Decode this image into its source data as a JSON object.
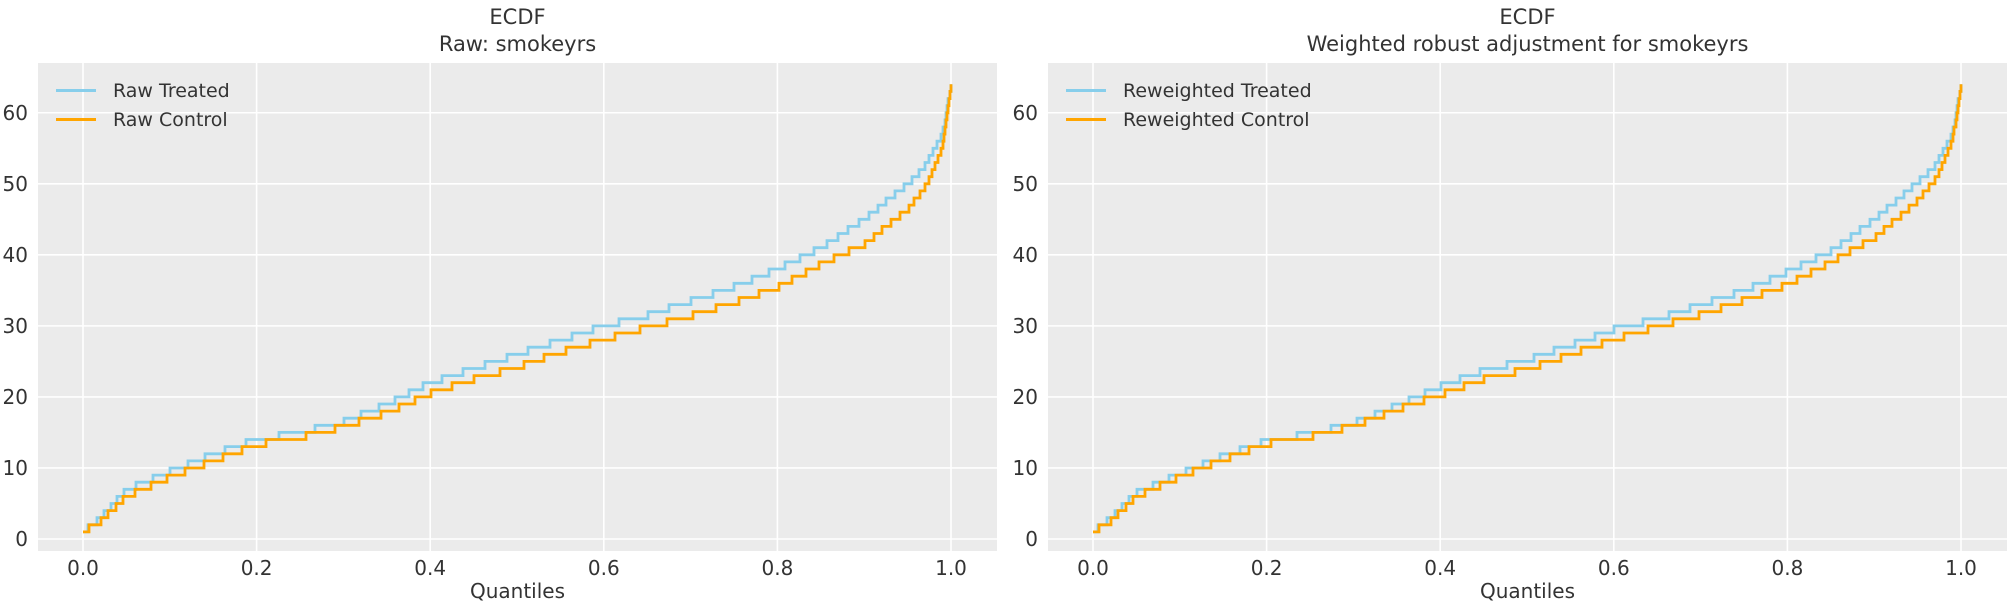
{
  "style": {
    "figure_bg": "#ffffff",
    "axes_bg": "#ebebeb",
    "grid_color": "#ffffff",
    "text_color": "#333333",
    "treated_color": "#87CEEB",
    "control_color": "#FFA500"
  },
  "chart_data": [
    {
      "type": "line",
      "variant": "ecdf-quantile-steps",
      "title": "ECDF",
      "subtitle": "Raw: smokeyrs",
      "xlabel": "Quantiles",
      "x_tick_labels": [
        "0.0",
        "0.2",
        "0.4",
        "0.6",
        "0.8",
        "1.0"
      ],
      "x_tick_values": [
        0,
        0.2,
        0.4,
        0.6,
        0.8,
        1.0
      ],
      "y_tick_labels": [
        "0",
        "10",
        "20",
        "30",
        "40",
        "50",
        "60"
      ],
      "y_tick_values": [
        0,
        10,
        20,
        30,
        40,
        50,
        60
      ],
      "xlim": [
        -0.05,
        1.05
      ],
      "ylim": [
        -1.7,
        67
      ],
      "grid": true,
      "legend_position": "upper left",
      "legend": [
        {
          "label": "Raw Treated",
          "color": "#87CEEB"
        },
        {
          "label": "Raw Control",
          "color": "#FFA500"
        }
      ],
      "series": [
        {
          "name": "Raw Treated",
          "color": "#87CEEB",
          "quantiles": [
            0,
            0.02,
            0.05,
            0.1,
            0.15,
            0.2,
            0.25,
            0.3,
            0.35,
            0.4,
            0.45,
            0.5,
            0.55,
            0.6,
            0.65,
            0.7,
            0.75,
            0.8,
            0.85,
            0.9,
            0.95,
            0.97,
            0.99,
            1.0
          ],
          "values": [
            1,
            3,
            7,
            9.5,
            12,
            14,
            15,
            16.5,
            19,
            22,
            24,
            26,
            28,
            30,
            31.5,
            33.5,
            35.5,
            38,
            41,
            45,
            50,
            52.5,
            57,
            64
          ]
        },
        {
          "name": "Raw Control",
          "color": "#FFA500",
          "quantiles": [
            0,
            0.02,
            0.05,
            0.1,
            0.15,
            0.2,
            0.25,
            0.3,
            0.35,
            0.4,
            0.45,
            0.5,
            0.55,
            0.6,
            0.65,
            0.7,
            0.75,
            0.8,
            0.85,
            0.9,
            0.95,
            0.97,
            0.99,
            1.0
          ],
          "values": [
            1,
            2.5,
            6,
            8.7,
            11,
            13.3,
            14.3,
            15.8,
            17.8,
            20.5,
            22.5,
            24.2,
            26.3,
            28.1,
            29.8,
            31.4,
            33.3,
            35.4,
            38.7,
            41.5,
            46.4,
            49.5,
            55,
            64
          ]
        }
      ]
    },
    {
      "type": "line",
      "variant": "ecdf-quantile-steps",
      "title": "ECDF",
      "subtitle": "Weighted robust adjustment for smokeyrs",
      "xlabel": "Quantiles",
      "x_tick_labels": [
        "0.0",
        "0.2",
        "0.4",
        "0.6",
        "0.8",
        "1.0"
      ],
      "x_tick_values": [
        0,
        0.2,
        0.4,
        0.6,
        0.8,
        1.0
      ],
      "y_tick_labels": [
        "0",
        "10",
        "20",
        "30",
        "40",
        "50",
        "60"
      ],
      "y_tick_values": [
        0,
        10,
        20,
        30,
        40,
        50,
        60
      ],
      "xlim": [
        -0.05,
        1.05
      ],
      "ylim": [
        -1.7,
        67
      ],
      "grid": true,
      "legend_position": "upper left",
      "legend": [
        {
          "label": "Reweighted Treated",
          "color": "#87CEEB"
        },
        {
          "label": "Reweighted Control",
          "color": "#FFA500"
        }
      ],
      "series": [
        {
          "name": "Reweighted Treated",
          "color": "#87CEEB",
          "quantiles": [
            0,
            0.02,
            0.05,
            0.1,
            0.15,
            0.2,
            0.25,
            0.3,
            0.35,
            0.4,
            0.45,
            0.5,
            0.55,
            0.6,
            0.65,
            0.7,
            0.75,
            0.8,
            0.85,
            0.9,
            0.95,
            0.97,
            0.99,
            1.0
          ],
          "values": [
            1,
            3,
            6.5,
            9.2,
            11.7,
            13.8,
            14.8,
            16.3,
            18.8,
            21.5,
            23.7,
            25.2,
            27.3,
            29.5,
            31,
            33,
            35,
            37.6,
            40.5,
            45,
            50.2,
            52.5,
            57,
            64
          ]
        },
        {
          "name": "Reweighted Control",
          "color": "#FFA500",
          "quantiles": [
            0,
            0.02,
            0.05,
            0.1,
            0.15,
            0.2,
            0.25,
            0.3,
            0.35,
            0.4,
            0.45,
            0.5,
            0.55,
            0.6,
            0.65,
            0.7,
            0.75,
            0.8,
            0.85,
            0.9,
            0.95,
            0.97,
            0.99,
            1.0
          ],
          "values": [
            1,
            2.5,
            6,
            8.8,
            11.2,
            13.4,
            14.4,
            15.9,
            18.2,
            20.3,
            22.5,
            23.9,
            26,
            28.1,
            29.9,
            31.6,
            33.6,
            35.8,
            39,
            42.4,
            47.6,
            50.5,
            56,
            64
          ]
        }
      ]
    }
  ]
}
